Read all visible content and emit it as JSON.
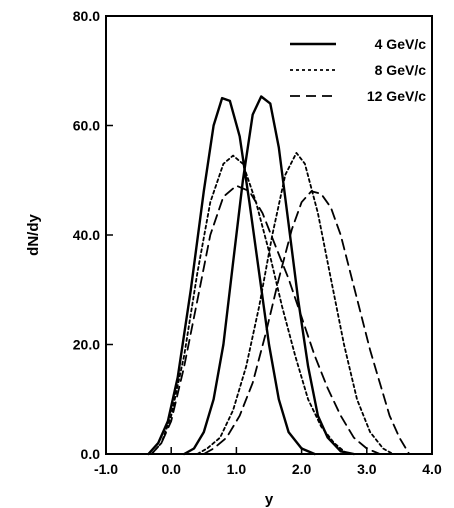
{
  "chart_data": {
    "type": "line",
    "title": "",
    "xlabel": "y",
    "ylabel": "dN/dy",
    "xlim": [
      -1.0,
      4.0
    ],
    "ylim": [
      0.0,
      80.0
    ],
    "x_ticks": [
      -1.0,
      0.0,
      1.0,
      2.0,
      3.0,
      4.0
    ],
    "x_tick_labels": [
      "-1.0",
      "0.0",
      "1.0",
      "2.0",
      "3.0",
      "4.0"
    ],
    "y_ticks": [
      0.0,
      20.0,
      40.0,
      60.0,
      80.0
    ],
    "y_tick_labels": [
      "0.0",
      "20.0",
      "40.0",
      "60.0",
      "80.0"
    ],
    "grid": false,
    "legend_position": "top-right",
    "series": [
      {
        "name": "4 GeV/c",
        "style": "solid",
        "color": "#000000",
        "curves": [
          [
            [
              -0.35,
              0
            ],
            [
              -0.2,
              2
            ],
            [
              -0.05,
              6
            ],
            [
              0.1,
              14
            ],
            [
              0.3,
              30
            ],
            [
              0.5,
              48
            ],
            [
              0.65,
              60
            ],
            [
              0.78,
              65
            ],
            [
              0.9,
              64.5
            ],
            [
              1.05,
              58
            ],
            [
              1.2,
              46
            ],
            [
              1.35,
              33
            ],
            [
              1.5,
              20
            ],
            [
              1.65,
              10
            ],
            [
              1.8,
              4
            ],
            [
              2.0,
              1
            ],
            [
              2.2,
              0
            ]
          ],
          [
            [
              0.2,
              0
            ],
            [
              0.35,
              1
            ],
            [
              0.5,
              4
            ],
            [
              0.65,
              10
            ],
            [
              0.8,
              20
            ],
            [
              0.95,
              35
            ],
            [
              1.1,
              50
            ],
            [
              1.25,
              62
            ],
            [
              1.38,
              65.3
            ],
            [
              1.52,
              64
            ],
            [
              1.65,
              56
            ],
            [
              1.8,
              42
            ],
            [
              1.95,
              28
            ],
            [
              2.1,
              16
            ],
            [
              2.25,
              7
            ],
            [
              2.4,
              3
            ],
            [
              2.6,
              0.5
            ],
            [
              2.8,
              0
            ]
          ]
        ]
      },
      {
        "name": "8 GeV/c",
        "style": "dotted",
        "color": "#000000",
        "curves": [
          [
            [
              -0.3,
              0
            ],
            [
              -0.15,
              2
            ],
            [
              0.0,
              7
            ],
            [
              0.2,
              18
            ],
            [
              0.4,
              33
            ],
            [
              0.6,
              46
            ],
            [
              0.8,
              53
            ],
            [
              0.95,
              54.5
            ],
            [
              1.1,
              53
            ],
            [
              1.3,
              46
            ],
            [
              1.5,
              37
            ],
            [
              1.7,
              27
            ],
            [
              1.9,
              18
            ],
            [
              2.1,
              10
            ],
            [
              2.3,
              5
            ],
            [
              2.5,
              2
            ],
            [
              2.7,
              0
            ]
          ],
          [
            [
              0.4,
              0
            ],
            [
              0.55,
              1
            ],
            [
              0.75,
              3
            ],
            [
              0.95,
              8
            ],
            [
              1.15,
              16
            ],
            [
              1.35,
              27
            ],
            [
              1.55,
              40
            ],
            [
              1.75,
              51
            ],
            [
              1.92,
              55
            ],
            [
              2.05,
              53
            ],
            [
              2.25,
              44
            ],
            [
              2.45,
              32
            ],
            [
              2.65,
              20
            ],
            [
              2.85,
              10
            ],
            [
              3.05,
              4
            ],
            [
              3.25,
              1
            ],
            [
              3.4,
              0
            ]
          ]
        ]
      },
      {
        "name": "12 GeV/c",
        "style": "dashed",
        "color": "#000000",
        "curves": [
          [
            [
              -0.3,
              0
            ],
            [
              -0.15,
              2
            ],
            [
              0.0,
              6
            ],
            [
              0.2,
              16
            ],
            [
              0.4,
              28
            ],
            [
              0.6,
              40
            ],
            [
              0.8,
              47
            ],
            [
              1.0,
              49
            ],
            [
              1.2,
              48
            ],
            [
              1.4,
              44
            ],
            [
              1.6,
              38
            ],
            [
              1.8,
              32
            ],
            [
              2.0,
              25
            ],
            [
              2.2,
              18
            ],
            [
              2.4,
              12
            ],
            [
              2.6,
              7
            ],
            [
              2.8,
              3
            ],
            [
              3.0,
              1
            ],
            [
              3.2,
              0
            ]
          ],
          [
            [
              0.5,
              0
            ],
            [
              0.65,
              1
            ],
            [
              0.85,
              3
            ],
            [
              1.05,
              7
            ],
            [
              1.25,
              13
            ],
            [
              1.45,
              22
            ],
            [
              1.65,
              32
            ],
            [
              1.85,
              41
            ],
            [
              2.0,
              46
            ],
            [
              2.15,
              48
            ],
            [
              2.3,
              47.5
            ],
            [
              2.45,
              45
            ],
            [
              2.6,
              40
            ],
            [
              2.75,
              33
            ],
            [
              2.9,
              26
            ],
            [
              3.05,
              19
            ],
            [
              3.2,
              13
            ],
            [
              3.35,
              7
            ],
            [
              3.5,
              3
            ],
            [
              3.65,
              0
            ]
          ]
        ]
      }
    ]
  },
  "legend": {
    "items": [
      {
        "label": "4 GeV/c",
        "style": "solid"
      },
      {
        "label": "8 GeV/c",
        "style": "dotted"
      },
      {
        "label": "12 GeV/c",
        "style": "dashed"
      }
    ]
  }
}
